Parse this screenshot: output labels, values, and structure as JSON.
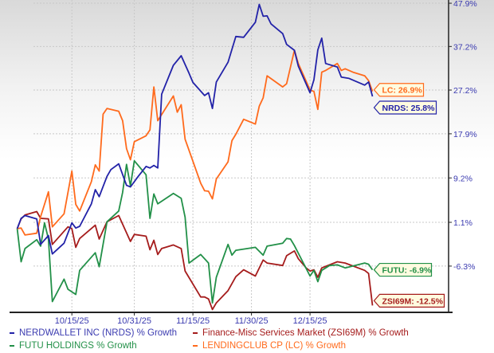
{
  "chart_data": {
    "type": "line",
    "title": "",
    "xlabel": "",
    "ylabel": "",
    "yscale": "log",
    "y_tick_labels": [
      "47.9%",
      "37.2%",
      "27.2%",
      "17.9%",
      "9.2%",
      "1.1%",
      "-6.3%"
    ],
    "y_ticks": [
      47.9,
      37.2,
      27.2,
      17.9,
      9.2,
      1.1,
      -6.3
    ],
    "x_tick_labels": [
      "10/15/25",
      "10/31/25",
      "11/15/25",
      "11/30/25",
      "12/15/25"
    ],
    "x_ticks": [
      "2025-10-15",
      "2025-10-31",
      "2025-11-15",
      "2025-11-30",
      "2025-12-15"
    ],
    "xlim": [
      "2025-10-01",
      "2026-01-07"
    ],
    "grid": true,
    "legend_position": "bottom",
    "series": [
      {
        "name": "NERDWALLET INC (NRDS) % Growth",
        "color": "#2222a8",
        "end_label": "NRDS: 25.8%",
        "points": [
          [
            "2025-10-01",
            0
          ],
          [
            "2025-10-02",
            1.8
          ],
          [
            "2025-10-03",
            2.3
          ],
          [
            "2025-10-06",
            1.7
          ],
          [
            "2025-10-07",
            -2.7
          ],
          [
            "2025-10-09",
            -1.2
          ],
          [
            "2025-10-10",
            -4.3
          ],
          [
            "2025-10-13",
            -2.5
          ],
          [
            "2025-10-15",
            1.0
          ],
          [
            "2025-10-16",
            0.1
          ],
          [
            "2025-10-17",
            0.4
          ],
          [
            "2025-10-20",
            4.4
          ],
          [
            "2025-10-21",
            7.0
          ],
          [
            "2025-10-22",
            5.7
          ],
          [
            "2025-10-24",
            9.5
          ],
          [
            "2025-10-25",
            10.8
          ],
          [
            "2025-10-27",
            11.9
          ],
          [
            "2025-10-29",
            7.8
          ],
          [
            "2025-10-30",
            7.5
          ],
          [
            "2025-11-01",
            9.5
          ],
          [
            "2025-11-03",
            11.4
          ],
          [
            "2025-11-04",
            11.1
          ],
          [
            "2025-11-05",
            11.6
          ],
          [
            "2025-11-06",
            11.1
          ],
          [
            "2025-11-07",
            26.3
          ],
          [
            "2025-11-10",
            32.8
          ],
          [
            "2025-11-12",
            35.0
          ],
          [
            "2025-11-14",
            31.0
          ],
          [
            "2025-11-15",
            28.9
          ],
          [
            "2025-11-18",
            26.0
          ],
          [
            "2025-11-19",
            26.6
          ],
          [
            "2025-11-20",
            23.2
          ],
          [
            "2025-11-21",
            29.0
          ],
          [
            "2025-11-24",
            33.5
          ],
          [
            "2025-11-26",
            39.6
          ],
          [
            "2025-11-28",
            39.4
          ],
          [
            "2025-12-01",
            43.1
          ],
          [
            "2025-12-02",
            47.6
          ],
          [
            "2025-12-03",
            44.6
          ],
          [
            "2025-12-04",
            44.7
          ],
          [
            "2025-12-05",
            42.7
          ],
          [
            "2025-12-08",
            40.3
          ],
          [
            "2025-12-09",
            37.7
          ],
          [
            "2025-12-11",
            36.3
          ],
          [
            "2025-12-12",
            32.6
          ],
          [
            "2025-12-15",
            26.6
          ],
          [
            "2025-12-16",
            29.5
          ],
          [
            "2025-12-17",
            36.4
          ],
          [
            "2025-12-18",
            39.2
          ],
          [
            "2025-12-19",
            33.2
          ],
          [
            "2025-12-22",
            32.4
          ],
          [
            "2025-12-23",
            30.1
          ],
          [
            "2025-12-25",
            29.8
          ],
          [
            "2025-12-29",
            28.3
          ],
          [
            "2025-12-30",
            29.0
          ],
          [
            "2025-12-31",
            25.8
          ]
        ]
      },
      {
        "name": "Finance-Misc Services Market (ZSI69M) % Growth",
        "color": "#a51c1c",
        "end_label": "ZSI69M: -12.5%",
        "points": [
          [
            "2025-10-01",
            0
          ],
          [
            "2025-10-02",
            1.7
          ],
          [
            "2025-10-03",
            2.4
          ],
          [
            "2025-10-06",
            3.0
          ],
          [
            "2025-10-07",
            1.8
          ],
          [
            "2025-10-09",
            1.7
          ],
          [
            "2025-10-10",
            -2.7
          ],
          [
            "2025-10-14",
            0.3
          ],
          [
            "2025-10-15",
            0
          ],
          [
            "2025-10-16",
            -3.2
          ],
          [
            "2025-10-17",
            -1.7
          ],
          [
            "2025-10-21",
            0.6
          ],
          [
            "2025-10-22",
            -1.8
          ],
          [
            "2025-10-24",
            1.2
          ],
          [
            "2025-10-27",
            2.3
          ],
          [
            "2025-10-30",
            -2.2
          ],
          [
            "2025-10-31",
            -1.0
          ],
          [
            "2025-11-03",
            -1.3
          ],
          [
            "2025-11-04",
            -3.6
          ],
          [
            "2025-11-05",
            -2.0
          ],
          [
            "2025-11-06",
            -4.4
          ],
          [
            "2025-11-07",
            -3.4
          ],
          [
            "2025-11-10",
            -2.8
          ],
          [
            "2025-11-12",
            -3.4
          ],
          [
            "2025-11-13",
            -7.1
          ],
          [
            "2025-11-17",
            -11.2
          ],
          [
            "2025-11-18",
            -11.2
          ],
          [
            "2025-11-19",
            -11.5
          ],
          [
            "2025-11-20",
            -13.1
          ],
          [
            "2025-11-21",
            -12.1
          ],
          [
            "2025-11-24",
            -10.2
          ],
          [
            "2025-11-26",
            -8.0
          ],
          [
            "2025-11-28",
            -6.9
          ],
          [
            "2025-12-01",
            -7.9
          ],
          [
            "2025-12-03",
            -5.3
          ],
          [
            "2025-12-04",
            -5.8
          ],
          [
            "2025-12-08",
            -6.2
          ],
          [
            "2025-12-09",
            -4.6
          ],
          [
            "2025-12-11",
            -3.8
          ],
          [
            "2025-12-12",
            -5.1
          ],
          [
            "2025-12-14",
            -6.6
          ],
          [
            "2025-12-15",
            -7.1
          ],
          [
            "2025-12-16",
            -6.9
          ],
          [
            "2025-12-17",
            -8.1
          ],
          [
            "2025-12-18",
            -6.6
          ],
          [
            "2025-12-22",
            -5.6
          ],
          [
            "2025-12-24",
            -5.8
          ],
          [
            "2025-12-29",
            -7.0
          ],
          [
            "2025-12-30",
            -7.5
          ],
          [
            "2025-12-31",
            -12.5
          ]
        ]
      },
      {
        "name": "FUTU HOLDINGS % Growth",
        "color": "#229048",
        "end_label": "FUTU: -6.9%",
        "points": [
          [
            "2025-10-01",
            0
          ],
          [
            "2025-10-02",
            -5.6
          ],
          [
            "2025-10-03",
            -3.4
          ],
          [
            "2025-10-06",
            -1.9
          ],
          [
            "2025-10-07",
            -3.0
          ],
          [
            "2025-10-08",
            1.0
          ],
          [
            "2025-10-09",
            -1.8
          ],
          [
            "2025-10-10",
            -11.9
          ],
          [
            "2025-10-13",
            -8.4
          ],
          [
            "2025-10-14",
            -10.0
          ],
          [
            "2025-10-16",
            -10.8
          ],
          [
            "2025-10-17",
            -7.0
          ],
          [
            "2025-10-21",
            -4.1
          ],
          [
            "2025-10-22",
            -6.4
          ],
          [
            "2025-10-24",
            1.2
          ],
          [
            "2025-10-27",
            3.1
          ],
          [
            "2025-10-28",
            6.5
          ],
          [
            "2025-10-29",
            11.8
          ],
          [
            "2025-10-30",
            7.7
          ],
          [
            "2025-10-31",
            12.5
          ],
          [
            "2025-11-03",
            9.8
          ],
          [
            "2025-11-04",
            1.8
          ],
          [
            "2025-11-05",
            6.2
          ],
          [
            "2025-11-06",
            4.4
          ],
          [
            "2025-11-10",
            6.3
          ],
          [
            "2025-11-12",
            5.4
          ],
          [
            "2025-11-13",
            2.0
          ],
          [
            "2025-11-14",
            -5.8
          ],
          [
            "2025-11-17",
            -4.4
          ],
          [
            "2025-11-19",
            -5.8
          ],
          [
            "2025-11-20",
            -12.1
          ],
          [
            "2025-11-21",
            -8.1
          ],
          [
            "2025-11-24",
            -2.7
          ],
          [
            "2025-11-25",
            -4.5
          ],
          [
            "2025-11-26",
            -3.7
          ],
          [
            "2025-12-01",
            -3.2
          ],
          [
            "2025-12-03",
            -4.5
          ],
          [
            "2025-12-04",
            -3.0
          ],
          [
            "2025-12-08",
            -2.5
          ],
          [
            "2025-12-09",
            -1.7
          ],
          [
            "2025-12-10",
            -1.8
          ],
          [
            "2025-12-11",
            -2.9
          ],
          [
            "2025-12-15",
            -7.9
          ],
          [
            "2025-12-16",
            -7.0
          ],
          [
            "2025-12-17",
            -8.8
          ],
          [
            "2025-12-18",
            -7.0
          ],
          [
            "2025-12-20",
            -6.2
          ],
          [
            "2025-12-22",
            -6.1
          ],
          [
            "2025-12-24",
            -6.6
          ],
          [
            "2025-12-29",
            -5.8
          ],
          [
            "2025-12-30",
            -6.0
          ],
          [
            "2025-12-31",
            -6.9
          ]
        ]
      },
      {
        "name": "LENDINGCLUB CP (LC) % Growth",
        "color": "#ff6a1c",
        "end_label": "LC: 26.9%",
        "points": [
          [
            "2025-10-01",
            0
          ],
          [
            "2025-10-02",
            0.1
          ],
          [
            "2025-10-03",
            -1.1
          ],
          [
            "2025-10-06",
            -0.8
          ],
          [
            "2025-10-07",
            2.1
          ],
          [
            "2025-10-09",
            6.6
          ],
          [
            "2025-10-10",
            0.3
          ],
          [
            "2025-10-13",
            2.6
          ],
          [
            "2025-10-15",
            10.5
          ],
          [
            "2025-10-16",
            4.3
          ],
          [
            "2025-10-17",
            3.1
          ],
          [
            "2025-10-20",
            8.5
          ],
          [
            "2025-10-21",
            11.7
          ],
          [
            "2025-10-22",
            10.5
          ],
          [
            "2025-10-23",
            22.0
          ],
          [
            "2025-10-24",
            23.2
          ],
          [
            "2025-10-27",
            22.6
          ],
          [
            "2025-10-28",
            20.6
          ],
          [
            "2025-10-29",
            14.9
          ],
          [
            "2025-10-30",
            12.7
          ],
          [
            "2025-10-31",
            16.3
          ],
          [
            "2025-11-03",
            17.5
          ],
          [
            "2025-11-04",
            18.7
          ],
          [
            "2025-11-05",
            27.9
          ],
          [
            "2025-11-06",
            20.6
          ],
          [
            "2025-11-10",
            25.9
          ],
          [
            "2025-11-11",
            22.4
          ],
          [
            "2025-11-12",
            24.0
          ],
          [
            "2025-11-13",
            16.8
          ],
          [
            "2025-11-17",
            8.2
          ],
          [
            "2025-11-18",
            6.8
          ],
          [
            "2025-11-19",
            6.7
          ],
          [
            "2025-11-20",
            5.3
          ],
          [
            "2025-11-21",
            9.0
          ],
          [
            "2025-11-24",
            12.3
          ],
          [
            "2025-11-25",
            16.5
          ],
          [
            "2025-11-26",
            17.8
          ],
          [
            "2025-11-28",
            20.9
          ],
          [
            "2025-12-01",
            19.9
          ],
          [
            "2025-12-02",
            23.7
          ],
          [
            "2025-12-03",
            25.5
          ],
          [
            "2025-12-04",
            30.4
          ],
          [
            "2025-12-08",
            27.9
          ],
          [
            "2025-12-09",
            28.6
          ],
          [
            "2025-12-11",
            36.3
          ],
          [
            "2025-12-12",
            33.2
          ],
          [
            "2025-12-15",
            27.2
          ],
          [
            "2025-12-16",
            26.9
          ],
          [
            "2025-12-17",
            23.0
          ],
          [
            "2025-12-18",
            31.2
          ],
          [
            "2025-12-19",
            31.6
          ],
          [
            "2025-12-22",
            33.2
          ],
          [
            "2025-12-23",
            31.6
          ],
          [
            "2025-12-24",
            32.0
          ],
          [
            "2025-12-26",
            31.2
          ],
          [
            "2025-12-29",
            30.4
          ],
          [
            "2025-12-30",
            29.3
          ],
          [
            "2025-12-31",
            26.9
          ]
        ]
      }
    ]
  },
  "colors": {
    "axis_text": "#3b3bb0",
    "callout_fill": "#fffbe0",
    "grid": "#c8c8c8"
  }
}
